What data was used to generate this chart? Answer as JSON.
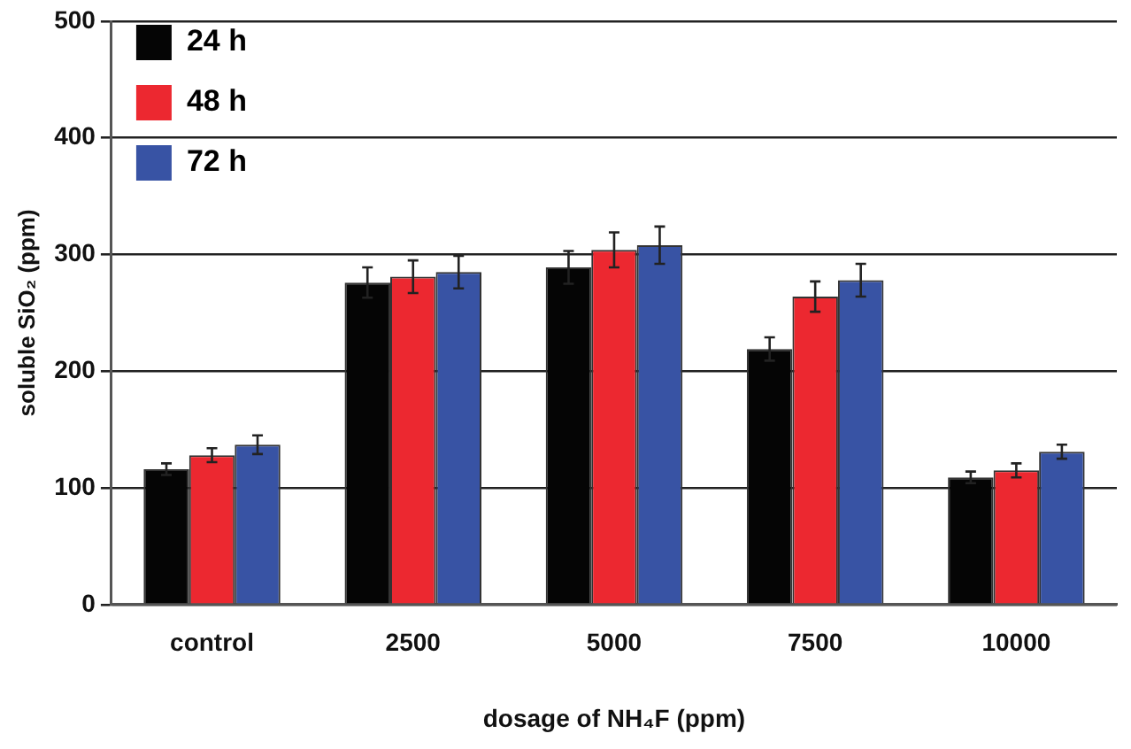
{
  "chart_data": {
    "type": "bar",
    "xlabel": "dosage of NH₄F (ppm)",
    "ylabel": "soluble SiO₂ (ppm)",
    "categories": [
      "control",
      "2500",
      "5000",
      "7500",
      "10000"
    ],
    "series": [
      {
        "name": "24 h",
        "color": "#050505",
        "values": [
          116,
          276,
          289,
          219,
          109
        ],
        "errors": [
          5,
          13,
          14,
          10,
          5
        ]
      },
      {
        "name": "48 h",
        "color": "#ec2830",
        "values": [
          128,
          281,
          304,
          264,
          115
        ],
        "errors": [
          6,
          14,
          15,
          13,
          6
        ]
      },
      {
        "name": "72 h",
        "color": "#3853a4",
        "values": [
          137,
          285,
          308,
          278,
          131
        ],
        "errors": [
          8,
          14,
          16,
          14,
          6
        ]
      }
    ],
    "ylim": [
      0,
      500
    ],
    "yticks": [
      0,
      100,
      200,
      300,
      400,
      500
    ],
    "grid": "y",
    "legend": "top left"
  }
}
